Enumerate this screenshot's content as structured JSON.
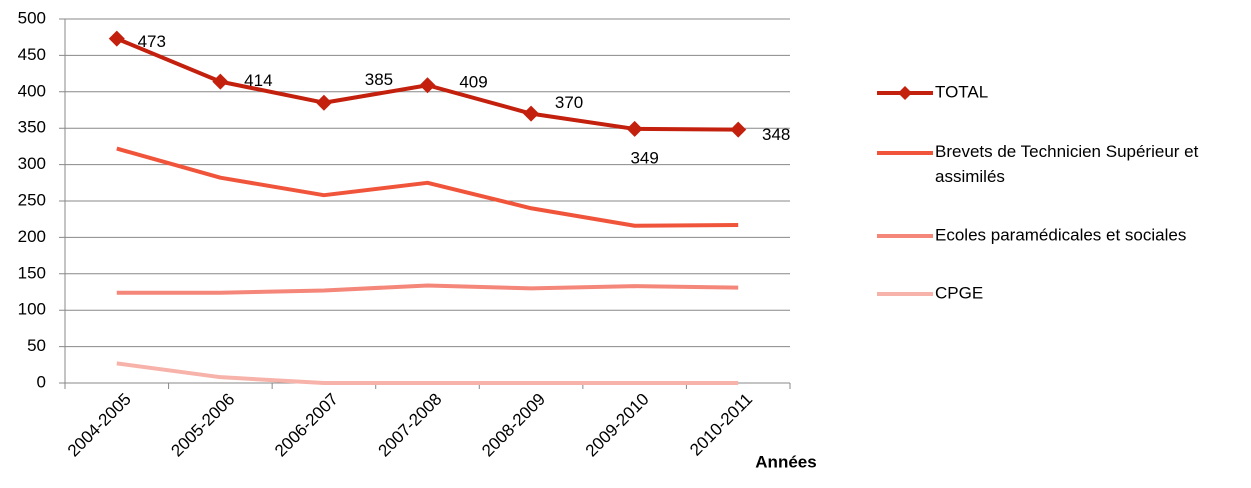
{
  "chart_data": {
    "type": "line",
    "x_label": "Années",
    "categories": [
      "2004-2005",
      "2005-2006",
      "2006-2007",
      "2007-2008",
      "2008-2009",
      "2009-2010",
      "2010-2011"
    ],
    "series": [
      {
        "name": "TOTAL",
        "color": "#c3200e",
        "markers": true,
        "values": [
          473,
          414,
          385,
          409,
          370,
          349,
          348
        ]
      },
      {
        "name": "Brevets de Technicien Supérieur et assimilés",
        "color": "#f0553c",
        "values": [
          322,
          282,
          258,
          275,
          240,
          216,
          217
        ]
      },
      {
        "name": "Ecoles paramédicales et sociales",
        "color": "#f4877a",
        "values": [
          124,
          124,
          127,
          134,
          130,
          133,
          131
        ]
      },
      {
        "name": "CPGE",
        "color": "#f7b2aa",
        "values": [
          27,
          8,
          0,
          0,
          0,
          0,
          0
        ]
      }
    ],
    "ylim": [
      0,
      500
    ],
    "yticks": [
      0,
      50,
      100,
      150,
      200,
      250,
      300,
      350,
      400,
      450,
      500
    ],
    "grid": true,
    "legend": "right",
    "data_labels_series": 0
  }
}
